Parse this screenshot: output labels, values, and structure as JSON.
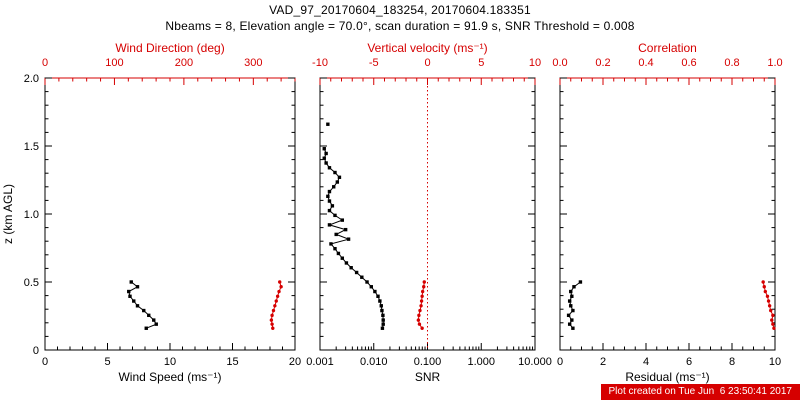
{
  "title": {
    "line1": "VAD_97_20170604_183254, 20170604.183351",
    "line2": "Nbeams = 8, Elevation angle = 70.0°, scan duration = 91.9 s, SNR Threshold = 0.008"
  },
  "footer": {
    "created": "Plot created on Tue Jun  6 23:50:41 2017"
  },
  "colors": {
    "axis": "#000000",
    "accent": "#d60000",
    "background": "#ffffff"
  },
  "yaxis": {
    "label": "z (km AGL)",
    "min": 0,
    "max": 2,
    "minor_step": 0.1,
    "majors": [
      {
        "v": 0,
        "label": "0"
      },
      {
        "v": 0.5,
        "label": "0.5"
      },
      {
        "v": 1,
        "label": "1.0"
      },
      {
        "v": 1.5,
        "label": "1.5"
      },
      {
        "v": 2,
        "label": "2.0"
      }
    ]
  },
  "chart_data": [
    {
      "id": "wind",
      "type": "line",
      "top_title": "Wind Direction (deg)",
      "bottom_title": "Wind Speed (ms⁻¹)",
      "show_y_labels": true,
      "bottom_axis": {
        "scale": "linear",
        "min": 0,
        "max": 20,
        "minor_step": 1,
        "majors": [
          {
            "v": 0,
            "label": "0"
          },
          {
            "v": 5,
            "label": "5"
          },
          {
            "v": 10,
            "label": "10"
          },
          {
            "v": 15,
            "label": "15"
          },
          {
            "v": 20,
            "label": "20"
          }
        ]
      },
      "top_axis": {
        "scale": "linear",
        "min": 0,
        "max": 360,
        "minor_step": 20,
        "majors": [
          {
            "v": 0,
            "label": "0"
          },
          {
            "v": 100,
            "label": "100"
          },
          {
            "v": 200,
            "label": "200"
          },
          {
            "v": 300,
            "label": "300"
          }
        ]
      },
      "series": [
        {
          "name": "wind-speed",
          "axis": "bottom",
          "color": "black",
          "marker": "square",
          "points": [
            [
              6.9,
              0.5
            ],
            [
              7.4,
              0.465
            ],
            [
              6.7,
              0.43
            ],
            [
              6.8,
              0.395
            ],
            [
              7.1,
              0.36
            ],
            [
              7.4,
              0.325
            ],
            [
              7.9,
              0.29
            ],
            [
              8.3,
              0.255
            ],
            [
              8.7,
              0.22
            ],
            [
              8.9,
              0.19
            ],
            [
              8.1,
              0.16
            ]
          ]
        },
        {
          "name": "wind-direction",
          "axis": "top",
          "color": "red",
          "marker": "circle",
          "points": [
            [
              338,
              0.5
            ],
            [
              340,
              0.465
            ],
            [
              337,
              0.43
            ],
            [
              335,
              0.395
            ],
            [
              333,
              0.36
            ],
            [
              331,
              0.325
            ],
            [
              329,
              0.29
            ],
            [
              327,
              0.255
            ],
            [
              326,
              0.22
            ],
            [
              327,
              0.19
            ],
            [
              328,
              0.16
            ]
          ]
        }
      ]
    },
    {
      "id": "snr",
      "type": "line",
      "top_title": "Vertical velocity (ms⁻¹)",
      "bottom_title": "SNR",
      "show_y_labels": false,
      "zero_line": {
        "axis": "top",
        "v": 0
      },
      "bottom_axis": {
        "scale": "log",
        "min": 0.001,
        "max": 10,
        "majors": [
          {
            "v": 0.001,
            "label": "0.001"
          },
          {
            "v": 0.01,
            "label": "0.010"
          },
          {
            "v": 0.1,
            "label": "0.100"
          },
          {
            "v": 1,
            "label": "1.000"
          },
          {
            "v": 10,
            "label": "10.000"
          }
        ]
      },
      "top_axis": {
        "scale": "linear",
        "min": -10,
        "max": 10,
        "minor_step": 1,
        "majors": [
          {
            "v": -10,
            "label": "-10"
          },
          {
            "v": -5,
            "label": "-5"
          },
          {
            "v": 0,
            "label": "0"
          },
          {
            "v": 5,
            "label": "5"
          },
          {
            "v": 10,
            "label": "10"
          }
        ]
      },
      "series": [
        {
          "name": "snr-profile",
          "axis": "bottom",
          "color": "black",
          "marker": "square",
          "points": [
            [
              0.0145,
              0.16
            ],
            [
              0.015,
              0.19
            ],
            [
              0.015,
              0.22
            ],
            [
              0.0148,
              0.255
            ],
            [
              0.0142,
              0.29
            ],
            [
              0.0138,
              0.325
            ],
            [
              0.013,
              0.36
            ],
            [
              0.012,
              0.395
            ],
            [
              0.0105,
              0.43
            ],
            [
              0.009,
              0.465
            ],
            [
              0.0075,
              0.5
            ],
            [
              0.006,
              0.535
            ],
            [
              0.0048,
              0.57
            ],
            [
              0.0038,
              0.605
            ],
            [
              0.0031,
              0.64
            ],
            [
              0.0026,
              0.675
            ],
            [
              0.0022,
              0.71
            ],
            [
              0.0019,
              0.745
            ],
            [
              0.0016,
              0.78
            ],
            [
              0.0034,
              0.815
            ],
            [
              0.002,
              0.85
            ],
            [
              0.003,
              0.885
            ],
            [
              0.0015,
              0.92
            ],
            [
              0.0026,
              0.955
            ],
            [
              0.0019,
              0.99
            ],
            [
              0.0015,
              1.025
            ],
            [
              0.0017,
              1.06
            ],
            [
              0.0015,
              1.095
            ],
            [
              0.0014,
              1.13
            ],
            [
              0.0015,
              1.165
            ],
            [
              0.0018,
              1.2
            ],
            [
              0.0021,
              1.235
            ],
            [
              0.0023,
              1.27
            ],
            [
              0.0019,
              1.305
            ],
            [
              0.0015,
              1.34
            ],
            [
              0.0013,
              1.375
            ],
            [
              0.0012,
              1.41
            ],
            [
              0.0013,
              1.445
            ],
            [
              0.0012,
              1.48
            ]
          ]
        },
        {
          "name": "snr-isolated-gate",
          "axis": "bottom",
          "color": "black",
          "marker": "square",
          "points": [
            [
              0.0014,
              1.66
            ]
          ]
        },
        {
          "name": "vertical-velocity",
          "axis": "top",
          "color": "red",
          "marker": "circle",
          "points": [
            [
              -0.5,
              0.16
            ],
            [
              -0.75,
              0.19
            ],
            [
              -0.85,
              0.22
            ],
            [
              -0.8,
              0.255
            ],
            [
              -0.7,
              0.29
            ],
            [
              -0.6,
              0.325
            ],
            [
              -0.55,
              0.36
            ],
            [
              -0.5,
              0.395
            ],
            [
              -0.45,
              0.43
            ],
            [
              -0.35,
              0.465
            ],
            [
              -0.3,
              0.5
            ]
          ]
        }
      ]
    },
    {
      "id": "residual",
      "type": "line",
      "top_title": "Correlation",
      "bottom_title": "Residual (ms⁻¹)",
      "show_y_labels": false,
      "bottom_axis": {
        "scale": "linear",
        "min": 0,
        "max": 10,
        "minor_step": 0.5,
        "majors": [
          {
            "v": 0,
            "label": "0"
          },
          {
            "v": 2,
            "label": "2"
          },
          {
            "v": 4,
            "label": "4"
          },
          {
            "v": 6,
            "label": "6"
          },
          {
            "v": 8,
            "label": "8"
          },
          {
            "v": 10,
            "label": "10"
          }
        ]
      },
      "top_axis": {
        "scale": "linear",
        "min": 0,
        "max": 1,
        "minor_step": 0.05,
        "majors": [
          {
            "v": 0,
            "label": "0.0"
          },
          {
            "v": 0.2,
            "label": "0.2"
          },
          {
            "v": 0.4,
            "label": "0.4"
          },
          {
            "v": 0.6,
            "label": "0.6"
          },
          {
            "v": 0.8,
            "label": "0.8"
          },
          {
            "v": 1,
            "label": "1.0"
          }
        ]
      },
      "series": [
        {
          "name": "residual",
          "axis": "bottom",
          "color": "black",
          "marker": "square",
          "points": [
            [
              0.6,
              0.16
            ],
            [
              0.45,
              0.19
            ],
            [
              0.55,
              0.22
            ],
            [
              0.4,
              0.255
            ],
            [
              0.6,
              0.29
            ],
            [
              0.5,
              0.325
            ],
            [
              0.45,
              0.36
            ],
            [
              0.55,
              0.395
            ],
            [
              0.5,
              0.43
            ],
            [
              0.65,
              0.465
            ],
            [
              0.95,
              0.5
            ]
          ]
        },
        {
          "name": "correlation",
          "axis": "top",
          "color": "red",
          "marker": "circle",
          "points": [
            [
              0.995,
              0.16
            ],
            [
              0.99,
              0.19
            ],
            [
              0.985,
              0.22
            ],
            [
              0.99,
              0.255
            ],
            [
              0.98,
              0.29
            ],
            [
              0.975,
              0.325
            ],
            [
              0.97,
              0.36
            ],
            [
              0.965,
              0.395
            ],
            [
              0.955,
              0.43
            ],
            [
              0.95,
              0.465
            ],
            [
              0.945,
              0.5
            ]
          ]
        }
      ]
    }
  ]
}
